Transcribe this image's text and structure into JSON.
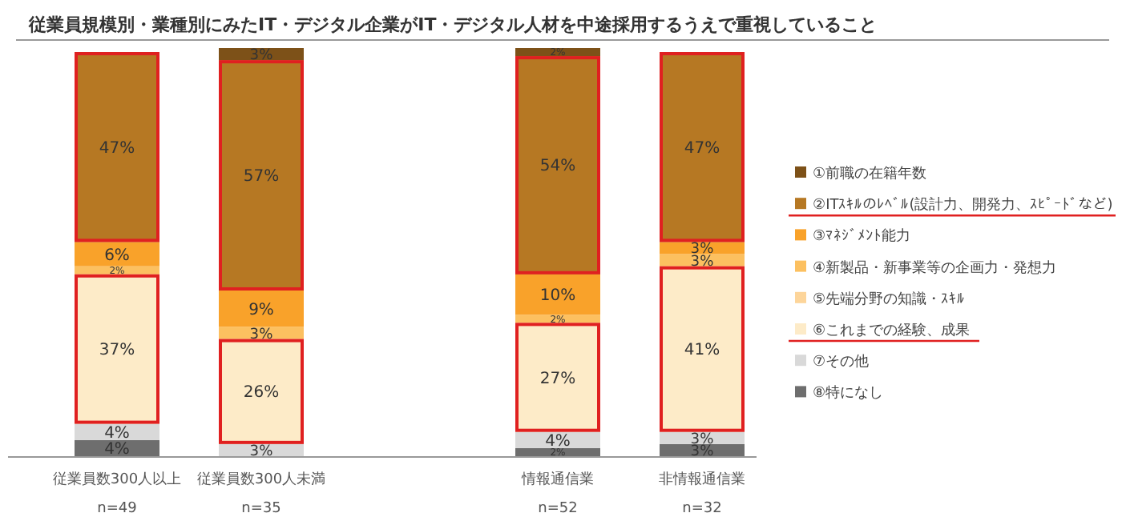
{
  "chart_data": {
    "type": "bar",
    "stacked": true,
    "title": "従業員規模別・業種別にみたIT・デジタル企業がIT・デジタル人材を中途採用するうえで重視していること",
    "categories": [
      "従業員数300人以上",
      "従業員数300人未満",
      "情報通信業",
      "非情報通信業"
    ],
    "annotations": [
      "n=49",
      "n=35",
      "n=52",
      "n=32"
    ],
    "legend": "right",
    "series": [
      {
        "name": "⑧特になし",
        "color": "#6e6e6e",
        "values": [
          4,
          null,
          2,
          3
        ],
        "value_labels": [
          "4%",
          null,
          "2%",
          "3%"
        ]
      },
      {
        "name": "⑦その他",
        "color": "#d9d9d9",
        "values": [
          4,
          3,
          4,
          3
        ],
        "value_labels": [
          "4%",
          "3%",
          "4%",
          "3%"
        ]
      },
      {
        "name": "⑥これまでの経験、成果",
        "color": "#fdebc8",
        "values": [
          37,
          26,
          27,
          41
        ],
        "value_labels": [
          "37%",
          "26%",
          "27%",
          "41%"
        ]
      },
      {
        "name": "⑤先端分野の知識・ｽｷﾙ",
        "color": "#fdd59a",
        "values": [
          null,
          null,
          null,
          null
        ],
        "value_labels": [
          null,
          null,
          null,
          null
        ]
      },
      {
        "name": "④新製品・新事業等の企画力・発想力",
        "color": "#fcc060",
        "values": [
          2,
          3,
          2,
          3
        ],
        "value_labels": [
          "2%",
          "3%",
          "2%",
          "3%"
        ]
      },
      {
        "name": "③ﾏﾈｼﾞﾒﾝﾄ能力",
        "color": "#f9a22a",
        "values": [
          6,
          9,
          10,
          3
        ],
        "value_labels": [
          "6%",
          "9%",
          "10%",
          "3%"
        ]
      },
      {
        "name": "②ITｽｷﾙのﾚﾍﾞﾙ(設計力、開発力、ｽﾋﾟｰﾄﾞなど)",
        "color": "#b67823",
        "values": [
          47,
          57,
          54,
          47
        ],
        "value_labels": [
          "47%",
          "57%",
          "54%",
          "47%"
        ]
      },
      {
        "name": "①前職の在籍年数",
        "color": "#7d5118",
        "values": [
          null,
          3,
          2,
          null
        ],
        "value_labels": [
          null,
          "3%",
          "2%",
          null
        ]
      }
    ]
  }
}
